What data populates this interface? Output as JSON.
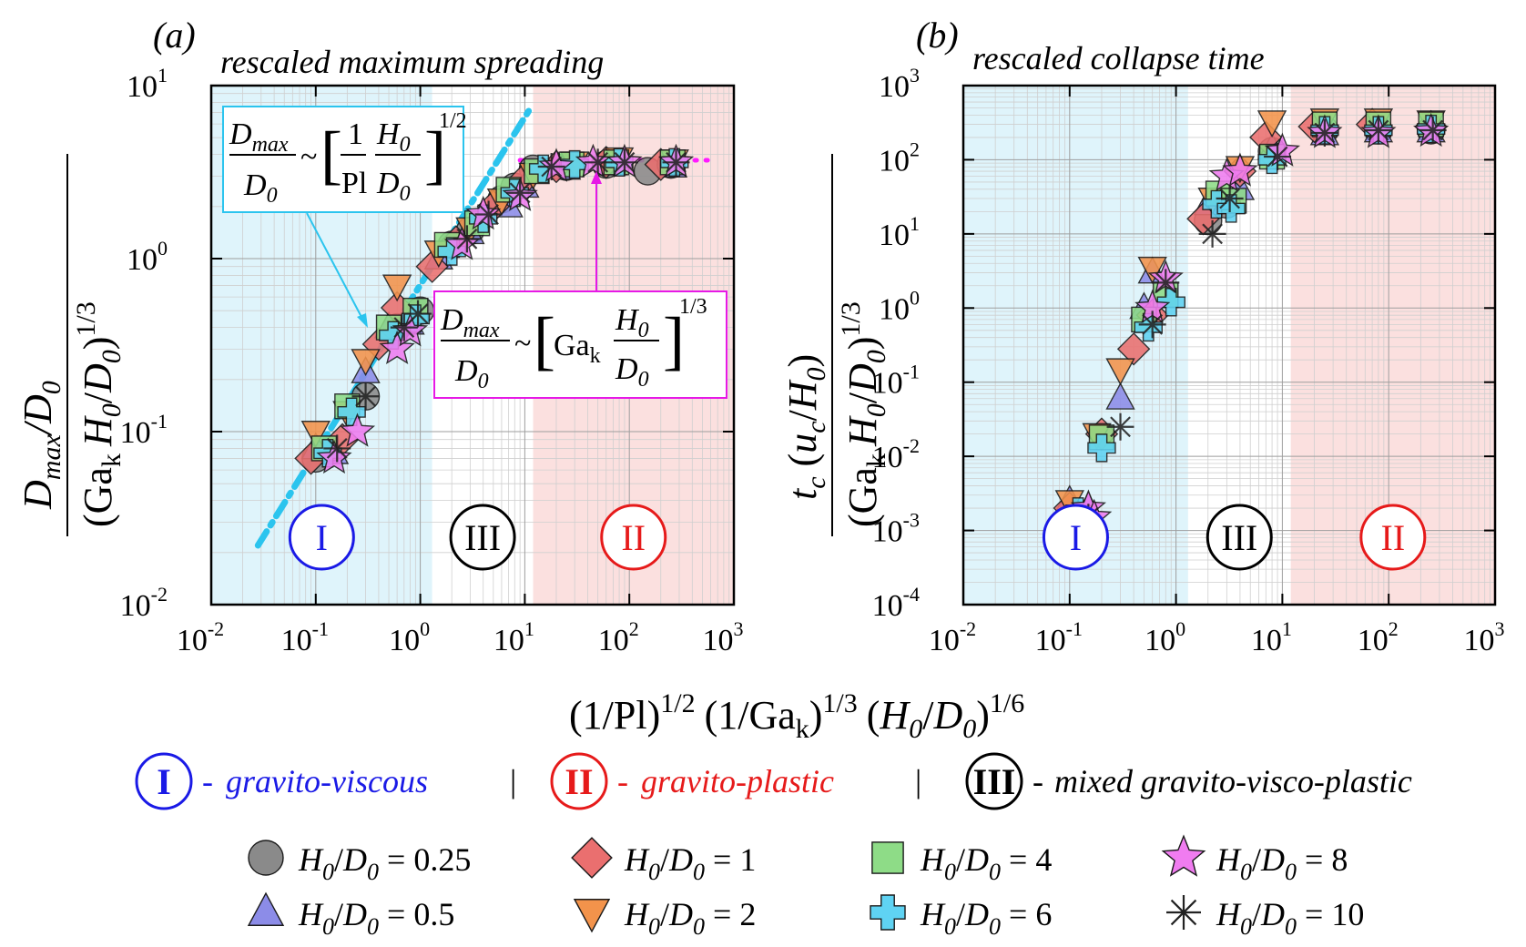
{
  "chart_data": [
    {
      "id": "a",
      "type": "scatter",
      "panel_label": "(a)",
      "title": "rescaled maximum spreading",
      "ylabel": "D_max/D_0 / (Ga_k H_0/D_0)^{1/3}",
      "xscale": "log",
      "yscale": "log",
      "xlim": [
        0.01,
        1000
      ],
      "ylim": [
        0.01,
        10
      ],
      "regions": [
        {
          "label": "I",
          "name": "gravito-viscous",
          "x_range": [
            0.01,
            1.3
          ],
          "color": "#dff4fb",
          "ring": "#1a1ae6"
        },
        {
          "label": "III",
          "name": "mixed gravito-visco-plastic",
          "x_range": [
            1.3,
            12
          ],
          "color": "#ffffff",
          "ring": "#000000"
        },
        {
          "label": "II",
          "name": "gravito-plastic",
          "x_range": [
            12,
            1000
          ],
          "color": "#fbe0df",
          "ring": "#e61a1a"
        }
      ],
      "fits": [
        {
          "name": "viscous scaling",
          "style": "dash-dot",
          "color": "#2bc4ee",
          "x": [
            0.028,
            11
          ],
          "y": [
            0.022,
            7.2
          ]
        },
        {
          "name": "plastic scaling",
          "style": "dotted",
          "color": "#ff19ff",
          "x": [
            9,
            650
          ],
          "y": [
            3.7,
            3.7
          ]
        }
      ],
      "annotations": [
        {
          "lhs_num": "D",
          "lhs_num_sub": "max",
          "lhs_den": "D",
          "lhs_den_sub": "0",
          "sim": "~",
          "inner_num": "1",
          "inner_den": "Pl",
          "ratio_num": "H",
          "ratio_num_sub": "0",
          "ratio_den": "D",
          "ratio_den_sub": "0",
          "exponent": "1/2",
          "color": "#2bc4ee"
        },
        {
          "lhs_num": "D",
          "lhs_num_sub": "max",
          "lhs_den": "D",
          "lhs_den_sub": "0",
          "sim": "~",
          "ga": "Ga",
          "ga_sub": "k",
          "ratio_num": "H",
          "ratio_num_sub": "0",
          "ratio_den": "D",
          "ratio_den_sub": "0",
          "exponent": "1/3",
          "color": "#e619e6"
        }
      ],
      "series": [
        {
          "name": "0.25",
          "points": [
            [
              0.1,
              0.07
            ],
            [
              0.3,
              0.16
            ],
            [
              0.6,
              0.4
            ],
            [
              1.0,
              0.5
            ],
            [
              2,
              1.2
            ],
            [
              3,
              1.45
            ],
            [
              6,
              2.2
            ],
            [
              8,
              2.6
            ],
            [
              12,
              3.3
            ],
            [
              25,
              3.4
            ],
            [
              60,
              3.5
            ],
            [
              150,
              3.2
            ],
            [
              250,
              3.5
            ]
          ]
        },
        {
          "name": "0.5",
          "points": [
            [
              0.1,
              0.08
            ],
            [
              0.15,
              0.075
            ],
            [
              0.3,
              0.22
            ],
            [
              0.5,
              0.4
            ],
            [
              0.8,
              0.42
            ],
            [
              1.5,
              1.0
            ],
            [
              3,
              1.4
            ],
            [
              7,
              2.0
            ],
            [
              10,
              2.6
            ],
            [
              25,
              3.3
            ],
            [
              70,
              3.5
            ],
            [
              260,
              3.4
            ]
          ]
        },
        {
          "name": "1",
          "points": [
            [
              0.09,
              0.07
            ],
            [
              0.18,
              0.09
            ],
            [
              0.4,
              0.32
            ],
            [
              0.6,
              0.52
            ],
            [
              1.3,
              0.9
            ],
            [
              2.2,
              1.25
            ],
            [
              5,
              2.0
            ],
            [
              10,
              2.9
            ],
            [
              20,
              3.4
            ],
            [
              60,
              3.6
            ],
            [
              200,
              3.5
            ]
          ]
        },
        {
          "name": "2",
          "points": [
            [
              0.1,
              0.1
            ],
            [
              0.2,
              0.13
            ],
            [
              0.3,
              0.26
            ],
            [
              0.6,
              0.7
            ],
            [
              1.5,
              1.1
            ],
            [
              3,
              1.5
            ],
            [
              6,
              2.2
            ],
            [
              12,
              3.1
            ],
            [
              30,
              3.6
            ],
            [
              80,
              3.8
            ],
            [
              270,
              3.7
            ]
          ]
        },
        {
          "name": "4",
          "points": [
            [
              0.12,
              0.08
            ],
            [
              0.2,
              0.14
            ],
            [
              0.5,
              0.4
            ],
            [
              0.9,
              0.5
            ],
            [
              1.8,
              1.2
            ],
            [
              3.5,
              1.6
            ],
            [
              7,
              2.5
            ],
            [
              13,
              3.2
            ],
            [
              28,
              3.5
            ],
            [
              75,
              3.6
            ],
            [
              260,
              3.6
            ]
          ]
        },
        {
          "name": "6",
          "points": [
            [
              0.13,
              0.075
            ],
            [
              0.22,
              0.13
            ],
            [
              0.55,
              0.36
            ],
            [
              0.9,
              0.45
            ],
            [
              2,
              1.1
            ],
            [
              4,
              1.7
            ],
            [
              8,
              2.4
            ],
            [
              15,
              3.3
            ],
            [
              30,
              3.5
            ],
            [
              80,
              3.6
            ],
            [
              270,
              3.6
            ]
          ]
        },
        {
          "name": "8",
          "points": [
            [
              0.15,
              0.07
            ],
            [
              0.25,
              0.1
            ],
            [
              0.6,
              0.3
            ],
            [
              0.8,
              0.38
            ],
            [
              2.5,
              1.2
            ],
            [
              4,
              1.8
            ],
            [
              9,
              2.3
            ],
            [
              20,
              3.4
            ],
            [
              45,
              3.6
            ],
            [
              90,
              3.6
            ],
            [
              280,
              3.6
            ]
          ]
        },
        {
          "name": "10",
          "points": [
            [
              0.16,
              0.08
            ],
            [
              0.3,
              0.16
            ],
            [
              0.7,
              0.4
            ],
            [
              0.95,
              0.48
            ],
            [
              2.8,
              1.3
            ],
            [
              4.5,
              1.8
            ],
            [
              9,
              2.4
            ],
            [
              18,
              3.4
            ],
            [
              50,
              3.6
            ],
            [
              90,
              3.6
            ],
            [
              280,
              3.6
            ]
          ]
        }
      ]
    },
    {
      "id": "b",
      "type": "scatter",
      "panel_label": "(b)",
      "title": "rescaled collapse time",
      "ylabel": "t_c (u_c/H_0) / (Ga_k H_0/D_0)^{1/3}",
      "xscale": "log",
      "yscale": "log",
      "xlim": [
        0.01,
        1000
      ],
      "ylim": [
        0.0001,
        1000
      ],
      "regions": [
        {
          "label": "I",
          "name": "gravito-viscous",
          "x_range": [
            0.01,
            1.3
          ],
          "color": "#dff4fb",
          "ring": "#1a1ae6"
        },
        {
          "label": "III",
          "name": "mixed gravito-visco-plastic",
          "x_range": [
            1.3,
            12
          ],
          "color": "#ffffff",
          "ring": "#000000"
        },
        {
          "label": "II",
          "name": "gravito-plastic",
          "x_range": [
            12,
            1000
          ],
          "color": "#fbe0df",
          "ring": "#e61a1a"
        }
      ],
      "series": [
        {
          "name": "0.25",
          "points": [
            [
              2,
              15
            ],
            [
              3,
              25
            ],
            [
              8,
              130
            ],
            [
              25,
              250
            ],
            [
              80,
              250
            ],
            [
              250,
              250
            ]
          ]
        },
        {
          "name": "0.5",
          "points": [
            [
              0.1,
              0.0025
            ],
            [
              0.15,
              0.002
            ],
            [
              0.3,
              0.06
            ],
            [
              0.5,
              1.0
            ],
            [
              0.6,
              3.0
            ],
            [
              2,
              25
            ],
            [
              4,
              40
            ],
            [
              8,
              140
            ],
            [
              25,
              220
            ],
            [
              80,
              240
            ],
            [
              250,
              240
            ]
          ]
        },
        {
          "name": "1",
          "points": [
            [
              0.09,
              0.00065
            ],
            [
              0.1,
              0.002
            ],
            [
              0.2,
              0.02
            ],
            [
              0.4,
              0.28
            ],
            [
              0.6,
              0.8
            ],
            [
              1.8,
              16
            ],
            [
              4,
              70
            ],
            [
              7,
              200
            ],
            [
              20,
              280
            ],
            [
              70,
              300
            ],
            [
              250,
              280
            ]
          ]
        },
        {
          "name": "2",
          "points": [
            [
              0.1,
              0.0025
            ],
            [
              0.18,
              0.02
            ],
            [
              0.3,
              0.15
            ],
            [
              0.6,
              3.5
            ],
            [
              2.2,
              30
            ],
            [
              4,
              80
            ],
            [
              8,
              330
            ],
            [
              25,
              350
            ],
            [
              80,
              350
            ],
            [
              250,
              330
            ]
          ]
        },
        {
          "name": "4",
          "points": [
            [
              0.12,
              0.0015
            ],
            [
              0.2,
              0.018
            ],
            [
              0.5,
              0.7
            ],
            [
              0.8,
              1.5
            ],
            [
              2.5,
              35
            ],
            [
              3.5,
              28
            ],
            [
              8,
              110
            ],
            [
              25,
              300
            ],
            [
              80,
              300
            ],
            [
              250,
              300
            ]
          ]
        },
        {
          "name": "6",
          "points": [
            [
              0.12,
              0.0018
            ],
            [
              0.2,
              0.013
            ],
            [
              0.55,
              0.55
            ],
            [
              0.9,
              1.2
            ],
            [
              2.4,
              25
            ],
            [
              3.3,
              22
            ],
            [
              8,
              100
            ],
            [
              25,
              250
            ],
            [
              80,
              250
            ],
            [
              250,
              260
            ]
          ]
        },
        {
          "name": "8",
          "points": [
            [
              0.15,
              0.002
            ],
            [
              0.17,
              0.0015
            ],
            [
              0.6,
              1.0
            ],
            [
              0.8,
              2.5
            ],
            [
              3,
              60
            ],
            [
              4,
              70
            ],
            [
              10,
              130
            ],
            [
              25,
              230
            ],
            [
              80,
              230
            ],
            [
              250,
              240
            ]
          ]
        },
        {
          "name": "10",
          "points": [
            [
              0.15,
              0.0015
            ],
            [
              0.3,
              0.025
            ],
            [
              0.6,
              0.6
            ],
            [
              0.8,
              2.2
            ],
            [
              2.2,
              10
            ],
            [
              3.2,
              30
            ],
            [
              9,
              110
            ],
            [
              25,
              230
            ],
            [
              80,
              250
            ],
            [
              260,
              250
            ]
          ]
        }
      ]
    }
  ],
  "shared_xlabel": {
    "p1": "(1/Pl)",
    "e1": "1/2",
    "p2": "(1/Ga",
    "s2": "k",
    "p2b": ")",
    "e2": "1/3",
    "p3": "(",
    "h": "H",
    "hs": "0",
    "sl": "/",
    "d": "D",
    "ds": "0",
    "p3b": ")",
    "e3": "1/6"
  },
  "ylabel_parts": {
    "a_num_d": "D",
    "a_num_dsub": "max",
    "a_num_sl": "/",
    "a_num_d0": "D",
    "a_num_d0sub": "0",
    "b_num_t": "t",
    "b_num_tsub": "c",
    "b_num_rest_open": " (",
    "b_num_u": "u",
    "b_num_usub": "c",
    "b_num_sl": "/",
    "b_num_h": "H",
    "b_num_hsub": "0",
    "b_num_close": ")",
    "den_open": "(Ga",
    "den_ksub": "k",
    "den_h": "H",
    "den_hsub": "0",
    "den_sl": "/",
    "den_d": "D",
    "den_dsub": "0",
    "den_close": ")",
    "den_exp": "1/3"
  },
  "legend": {
    "regimes": [
      {
        "numeral": "I",
        "text": "gravito-viscous",
        "ring": "#1a1ae6",
        "color": "#1a1ae6"
      },
      {
        "numeral": "II",
        "text": "gravito-plastic",
        "ring": "#e61a1a",
        "color": "#e61a1a"
      },
      {
        "numeral": "III",
        "text": "mixed gravito-visco-plastic",
        "ring": "#000000",
        "color": "#000000"
      }
    ],
    "dash": "-",
    "separator": "|",
    "markers_prefix_h": "H",
    "markers_prefix_hsub": "0",
    "markers_prefix_sl": "/",
    "markers_prefix_d": "D",
    "markers_prefix_dsub": "0",
    "markers_eq": "=",
    "markers": [
      {
        "shape": "circle",
        "value": "0.25",
        "fill": "#8a8a8a"
      },
      {
        "shape": "triangle-up",
        "value": "0.5",
        "fill": "#8c8ce8"
      },
      {
        "shape": "diamond",
        "value": "1",
        "fill": "#ea6f6f"
      },
      {
        "shape": "triangle-down",
        "value": "2",
        "fill": "#f3934b"
      },
      {
        "shape": "square",
        "value": "4",
        "fill": "#8edc87"
      },
      {
        "shape": "plus",
        "value": "6",
        "fill": "#5fd3f3"
      },
      {
        "shape": "star",
        "value": "8",
        "fill": "#f07cf0"
      },
      {
        "shape": "asterisk",
        "value": "10",
        "fill": "#222222"
      }
    ]
  }
}
